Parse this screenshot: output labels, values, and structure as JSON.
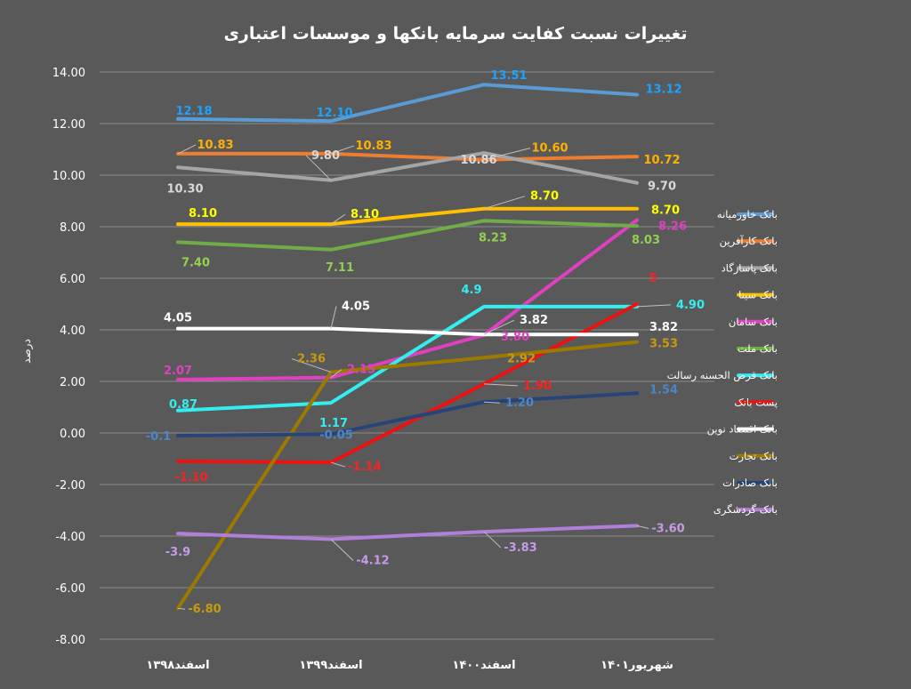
{
  "chart_data": {
    "type": "line",
    "title": "تغییرات نسبت کفایت سرمایه بانکها و موسسات اعتباری",
    "xlabel": "",
    "ylabel": "درصد",
    "categories": [
      "اسفند۱۳۹۸",
      "اسفند۱۳۹۹",
      "اسفند۱۴۰۰",
      "شهریور۱۴۰۱"
    ],
    "ylim": [
      -8,
      14
    ],
    "yticks": [
      14,
      12,
      10,
      8,
      6,
      4,
      2,
      0,
      -2,
      -4,
      -6,
      -8
    ],
    "ytick_labels": [
      "14.00",
      "12.00",
      "10.00",
      "8.00",
      "6.00",
      "4.00",
      "2.00",
      "0.00",
      "-2.00",
      "-4.00",
      "-6.00",
      "-8.00"
    ],
    "grid": true,
    "legend_position": "right",
    "series": [
      {
        "name": "بانک خاورمیانه",
        "color": "#5b9bd5",
        "values": [
          12.18,
          12.1,
          13.51,
          13.12
        ],
        "labels": [
          "12.18",
          "12.10",
          "13.51",
          "13.12"
        ]
      },
      {
        "name": "بانک کارآفرین",
        "color": "#ed7d31",
        "values": [
          10.83,
          10.83,
          10.6,
          10.72
        ],
        "labels": [
          "10.83",
          "10.83",
          "10.60",
          "10.72"
        ]
      },
      {
        "name": "بانک پاسارگاد",
        "color": "#a5a5a5",
        "values": [
          10.3,
          9.8,
          10.86,
          9.7
        ],
        "labels": [
          "10.30",
          "9.80",
          "10.86",
          "9.70"
        ]
      },
      {
        "name": "بانک سینا",
        "color": "#ffc000",
        "values": [
          8.1,
          8.1,
          8.7,
          8.7
        ],
        "labels": [
          "8.10",
          "8.10",
          "8.70",
          "8.70"
        ]
      },
      {
        "name": "بانک سامان",
        "color": "#e040c0",
        "values": [
          2.07,
          2.15,
          3.8,
          8.26
        ],
        "labels": [
          "2.07",
          "2.15",
          "3.80",
          "8.26"
        ]
      },
      {
        "name": "بانک ملت",
        "color": "#70ad47",
        "values": [
          7.4,
          7.11,
          8.23,
          8.03
        ],
        "labels": [
          "7.40",
          "7.11",
          "8.23",
          "8.03"
        ]
      },
      {
        "name": "بانک قرض الحسنه رسالت",
        "color": "#33eeee",
        "values": [
          0.87,
          1.17,
          4.9,
          4.9
        ],
        "labels": [
          "0.87",
          "1.17",
          "4.9",
          "4.90"
        ]
      },
      {
        "name": "پست بانک",
        "color": "#ee1111",
        "values": [
          -1.1,
          -1.14,
          1.9,
          5
        ],
        "labels": [
          "-1.10",
          "-1.14",
          "1.90",
          "5"
        ]
      },
      {
        "name": "بانک اقتصاد نوین",
        "color": "#ffffff",
        "values": [
          4.05,
          4.05,
          3.82,
          3.82
        ],
        "labels": [
          "4.05",
          "4.05",
          "3.82",
          "3.82"
        ]
      },
      {
        "name": "بانک تجارت",
        "color": "#9c7a00",
        "values": [
          -6.8,
          2.36,
          2.92,
          3.53
        ],
        "labels": [
          "-6.80",
          "2.36",
          "2.92",
          "3.53"
        ]
      },
      {
        "name": "بانک صادرات",
        "color": "#264478",
        "values": [
          -0.1,
          -0.05,
          1.2,
          1.54
        ],
        "labels": [
          "-0.1",
          "-0.05",
          "1.20",
          "1.54"
        ]
      },
      {
        "name": "بانک گردشگری",
        "color": "#b07fd8",
        "values": [
          -3.9,
          -4.12,
          -3.83,
          -3.6
        ],
        "labels": [
          "-3.9",
          "-4.12",
          "-3.83",
          "-3.60"
        ]
      }
    ]
  },
  "label_colors": {
    "بانک خاورمیانه": "#1aa3ff",
    "بانک کارآفرین": "#ffb000",
    "بانک پاسارگاد": "#d9d9d9",
    "بانک سینا": "#ffff00",
    "بانک سامان": "#e040c0",
    "بانک ملت": "#92d050",
    "بانک قرض الحسنه رسالت": "#33eeee",
    "پست بانک": "#ff2020",
    "بانک اقتصاد نوین": "#ffffff",
    "بانک تجارت": "#c89a10",
    "بانک صادرات": "#4a86c8",
    "بانک گردشگری": "#c79ae8"
  }
}
